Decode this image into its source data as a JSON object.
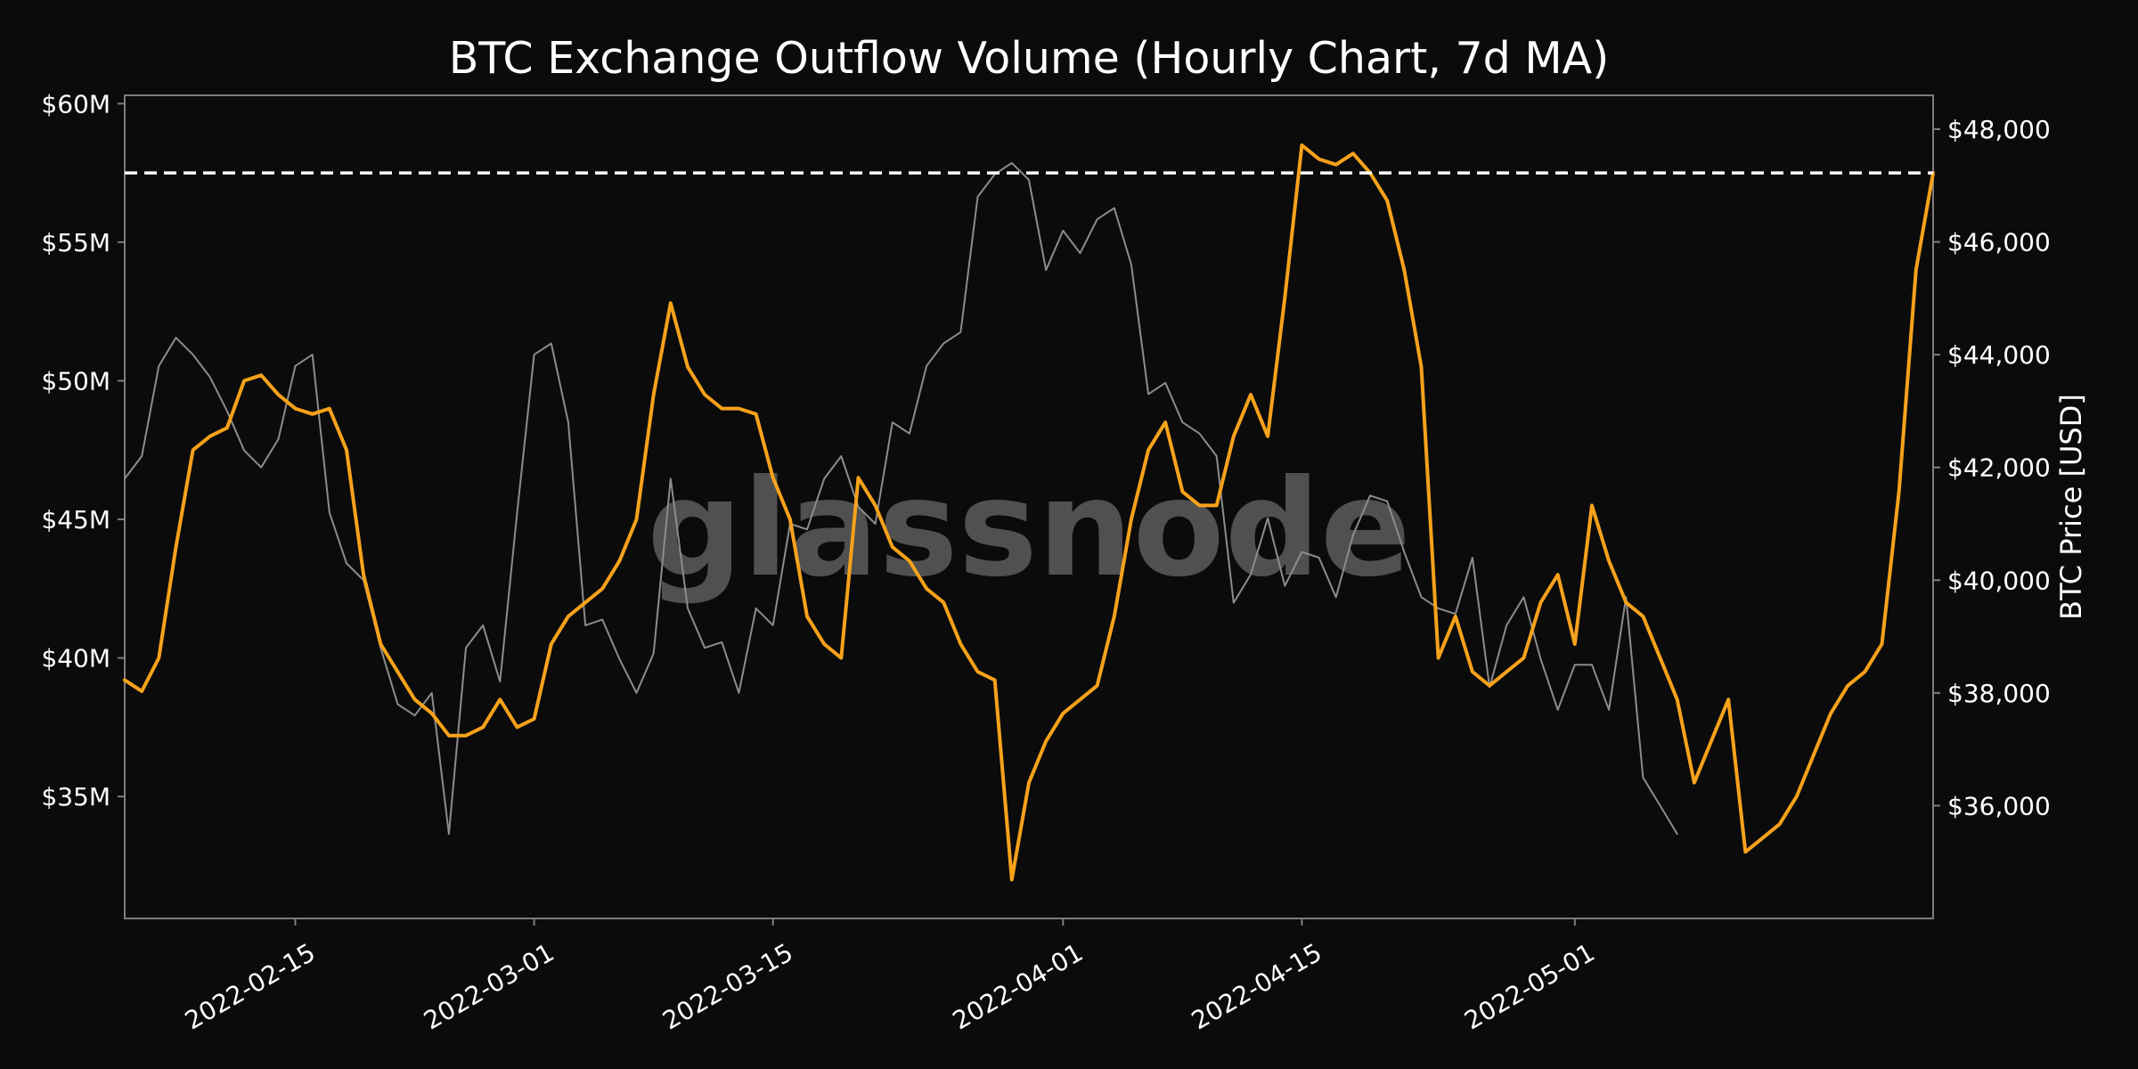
{
  "chart_data": {
    "type": "line",
    "title": "BTC Exchange Outflow Volume (Hourly Chart, 7d MA)",
    "watermark": "glassnode",
    "background_color": "#0b0b0b",
    "xlim": [
      "2022-02-05",
      "2022-05-22"
    ],
    "x_ticks": [
      "2022-02-15",
      "2022-03-01",
      "2022-03-15",
      "2022-04-01",
      "2022-04-15",
      "2022-05-01"
    ],
    "y_left": {
      "label": "",
      "lim": [
        30600000,
        60300000
      ],
      "ticks": [
        35000000,
        40000000,
        45000000,
        50000000,
        55000000,
        60000000
      ],
      "tick_labels": [
        "$35M",
        "$40M",
        "$45M",
        "$50M",
        "$55M",
        "$60M"
      ]
    },
    "y_right": {
      "label": "BTC Price [USD]",
      "lim": [
        34000,
        48600
      ],
      "ticks": [
        36000,
        38000,
        40000,
        42000,
        44000,
        46000,
        48000
      ],
      "tick_labels": [
        "$36,000",
        "$38,000",
        "$40,000",
        "$42,000",
        "$44,000",
        "$46,000",
        "$48,000"
      ]
    },
    "reference_line": {
      "axis": "left",
      "value": 57500000,
      "style": "dashed",
      "color": "#ffffff"
    },
    "series": [
      {
        "axis": "left",
        "color": "#f7a21b",
        "points": [
          [
            "2022-02-05",
            39.2
          ],
          [
            "2022-02-06",
            38.8
          ],
          [
            "2022-02-07",
            40.0
          ],
          [
            "2022-02-08",
            44.0
          ],
          [
            "2022-02-09",
            47.5
          ],
          [
            "2022-02-10",
            48.0
          ],
          [
            "2022-02-11",
            48.3
          ],
          [
            "2022-02-12",
            50.0
          ],
          [
            "2022-02-13",
            50.2
          ],
          [
            "2022-02-14",
            49.5
          ],
          [
            "2022-02-15",
            49.0
          ],
          [
            "2022-02-16",
            48.8
          ],
          [
            "2022-02-17",
            49.0
          ],
          [
            "2022-02-18",
            47.5
          ],
          [
            "2022-02-19",
            43.0
          ],
          [
            "2022-02-20",
            40.5
          ],
          [
            "2022-02-21",
            39.5
          ],
          [
            "2022-02-22",
            38.5
          ],
          [
            "2022-02-23",
            38.0
          ],
          [
            "2022-02-24",
            37.2
          ],
          [
            "2022-02-25",
            37.2
          ],
          [
            "2022-02-26",
            37.5
          ],
          [
            "2022-02-27",
            38.5
          ],
          [
            "2022-02-28",
            37.5
          ],
          [
            "2022-03-01",
            37.8
          ],
          [
            "2022-03-02",
            40.5
          ],
          [
            "2022-03-03",
            41.5
          ],
          [
            "2022-03-04",
            42.0
          ],
          [
            "2022-03-05",
            42.5
          ],
          [
            "2022-03-06",
            43.5
          ],
          [
            "2022-03-07",
            45.0
          ],
          [
            "2022-03-08",
            49.5
          ],
          [
            "2022-03-09",
            52.8
          ],
          [
            "2022-03-10",
            50.5
          ],
          [
            "2022-03-11",
            49.5
          ],
          [
            "2022-03-12",
            49.0
          ],
          [
            "2022-03-13",
            49.0
          ],
          [
            "2022-03-14",
            48.8
          ],
          [
            "2022-03-15",
            46.5
          ],
          [
            "2022-03-16",
            45.0
          ],
          [
            "2022-03-17",
            41.5
          ],
          [
            "2022-03-18",
            40.5
          ],
          [
            "2022-03-19",
            40.0
          ],
          [
            "2022-03-20",
            46.5
          ],
          [
            "2022-03-21",
            45.5
          ],
          [
            "2022-03-22",
            44.0
          ],
          [
            "2022-03-23",
            43.5
          ],
          [
            "2022-03-24",
            42.5
          ],
          [
            "2022-03-25",
            42.0
          ],
          [
            "2022-03-26",
            40.5
          ],
          [
            "2022-03-27",
            39.5
          ],
          [
            "2022-03-28",
            39.2
          ],
          [
            "2022-03-29",
            32.0
          ],
          [
            "2022-03-30",
            35.5
          ],
          [
            "2022-03-31",
            37.0
          ],
          [
            "2022-04-01",
            38.0
          ],
          [
            "2022-04-02",
            38.5
          ],
          [
            "2022-04-03",
            39.0
          ],
          [
            "2022-04-04",
            41.5
          ],
          [
            "2022-04-05",
            45.0
          ],
          [
            "2022-04-06",
            47.5
          ],
          [
            "2022-04-07",
            48.5
          ],
          [
            "2022-04-08",
            46.0
          ],
          [
            "2022-04-09",
            45.5
          ],
          [
            "2022-04-10",
            45.5
          ],
          [
            "2022-04-11",
            48.0
          ],
          [
            "2022-04-12",
            49.5
          ],
          [
            "2022-04-13",
            48.0
          ],
          [
            "2022-04-14",
            53.0
          ],
          [
            "2022-04-15",
            58.5
          ],
          [
            "2022-04-16",
            58.0
          ],
          [
            "2022-04-17",
            57.8
          ],
          [
            "2022-04-18",
            58.2
          ],
          [
            "2022-04-19",
            57.5
          ],
          [
            "2022-04-20",
            56.5
          ],
          [
            "2022-04-21",
            54.0
          ],
          [
            "2022-04-22",
            50.5
          ],
          [
            "2022-04-23",
            40.0
          ],
          [
            "2022-04-24",
            41.5
          ],
          [
            "2022-04-25",
            39.5
          ],
          [
            "2022-04-26",
            39.0
          ],
          [
            "2022-04-27",
            39.5
          ],
          [
            "2022-04-28",
            40.0
          ],
          [
            "2022-04-29",
            42.0
          ],
          [
            "2022-04-30",
            43.0
          ],
          [
            "2022-05-01",
            40.5
          ],
          [
            "2022-05-02",
            45.5
          ],
          [
            "2022-05-03",
            43.5
          ],
          [
            "2022-05-04",
            42.0
          ],
          [
            "2022-05-05",
            41.5
          ],
          [
            "2022-05-06",
            40.0
          ],
          [
            "2022-05-07",
            38.5
          ],
          [
            "2022-05-08",
            35.5
          ],
          [
            "2022-05-09",
            37.0
          ],
          [
            "2022-05-10",
            38.5
          ],
          [
            "2022-05-11",
            33.0
          ],
          [
            "2022-05-12",
            33.5
          ],
          [
            "2022-05-13",
            34.0
          ],
          [
            "2022-05-14",
            35.0
          ],
          [
            "2022-05-15",
            36.5
          ],
          [
            "2022-05-16",
            38.0
          ],
          [
            "2022-05-17",
            39.0
          ],
          [
            "2022-05-18",
            39.5
          ],
          [
            "2022-05-19",
            40.5
          ],
          [
            "2022-05-20",
            46.0
          ],
          [
            "2022-05-21",
            54.0
          ],
          [
            "2022-05-22",
            57.5
          ]
        ]
      },
      {
        "axis": "right",
        "color": "#8c8c8c",
        "points": [
          [
            "2022-02-05",
            41.8
          ],
          [
            "2022-02-06",
            42.2
          ],
          [
            "2022-02-07",
            43.8
          ],
          [
            "2022-02-08",
            44.3
          ],
          [
            "2022-02-09",
            44.0
          ],
          [
            "2022-02-10",
            43.6
          ],
          [
            "2022-02-11",
            43.0
          ],
          [
            "2022-02-12",
            42.3
          ],
          [
            "2022-02-13",
            42.0
          ],
          [
            "2022-02-14",
            42.5
          ],
          [
            "2022-02-15",
            43.8
          ],
          [
            "2022-02-16",
            44.0
          ],
          [
            "2022-02-17",
            41.2
          ],
          [
            "2022-02-18",
            40.3
          ],
          [
            "2022-02-19",
            40.0
          ],
          [
            "2022-02-20",
            38.8
          ],
          [
            "2022-02-21",
            37.8
          ],
          [
            "2022-02-22",
            37.6
          ],
          [
            "2022-02-23",
            38.0
          ],
          [
            "2022-02-24",
            35.5
          ],
          [
            "2022-02-25",
            38.8
          ],
          [
            "2022-02-26",
            39.2
          ],
          [
            "2022-02-27",
            38.2
          ],
          [
            "2022-02-28",
            41.2
          ],
          [
            "2022-03-01",
            44.0
          ],
          [
            "2022-03-02",
            44.2
          ],
          [
            "2022-03-03",
            42.8
          ],
          [
            "2022-03-04",
            39.2
          ],
          [
            "2022-03-05",
            39.3
          ],
          [
            "2022-03-06",
            38.6
          ],
          [
            "2022-03-07",
            38.0
          ],
          [
            "2022-03-08",
            38.7
          ],
          [
            "2022-03-09",
            41.8
          ],
          [
            "2022-03-10",
            39.5
          ],
          [
            "2022-03-11",
            38.8
          ],
          [
            "2022-03-12",
            38.9
          ],
          [
            "2022-03-13",
            38.0
          ],
          [
            "2022-03-14",
            39.5
          ],
          [
            "2022-03-15",
            39.2
          ],
          [
            "2022-03-16",
            41.0
          ],
          [
            "2022-03-17",
            40.9
          ],
          [
            "2022-03-18",
            41.8
          ],
          [
            "2022-03-19",
            42.2
          ],
          [
            "2022-03-20",
            41.3
          ],
          [
            "2022-03-21",
            41.0
          ],
          [
            "2022-03-22",
            42.8
          ],
          [
            "2022-03-23",
            42.6
          ],
          [
            "2022-03-24",
            43.8
          ],
          [
            "2022-03-25",
            44.2
          ],
          [
            "2022-03-26",
            44.4
          ],
          [
            "2022-03-27",
            46.8
          ],
          [
            "2022-03-28",
            47.2
          ],
          [
            "2022-03-29",
            47.4
          ],
          [
            "2022-03-30",
            47.1
          ],
          [
            "2022-03-31",
            45.5
          ],
          [
            "2022-04-01",
            46.2
          ],
          [
            "2022-04-02",
            45.8
          ],
          [
            "2022-04-03",
            46.4
          ],
          [
            "2022-04-04",
            46.6
          ],
          [
            "2022-04-05",
            45.6
          ],
          [
            "2022-04-06",
            43.3
          ],
          [
            "2022-04-07",
            43.5
          ],
          [
            "2022-04-08",
            42.8
          ],
          [
            "2022-04-09",
            42.6
          ],
          [
            "2022-04-10",
            42.2
          ],
          [
            "2022-04-11",
            39.6
          ],
          [
            "2022-04-12",
            40.1
          ],
          [
            "2022-04-13",
            41.1
          ],
          [
            "2022-04-14",
            39.9
          ],
          [
            "2022-04-15",
            40.5
          ],
          [
            "2022-04-16",
            40.4
          ],
          [
            "2022-04-17",
            39.7
          ],
          [
            "2022-04-18",
            40.8
          ],
          [
            "2022-04-19",
            41.5
          ],
          [
            "2022-04-20",
            41.4
          ],
          [
            "2022-04-21",
            40.5
          ],
          [
            "2022-04-22",
            39.7
          ],
          [
            "2022-04-23",
            39.5
          ],
          [
            "2022-04-24",
            39.4
          ],
          [
            "2022-04-25",
            40.4
          ],
          [
            "2022-04-26",
            38.1
          ],
          [
            "2022-04-27",
            39.2
          ],
          [
            "2022-04-28",
            39.7
          ],
          [
            "2022-04-29",
            38.6
          ],
          [
            "2022-04-30",
            37.7
          ],
          [
            "2022-05-01",
            38.5
          ],
          [
            "2022-05-02",
            38.5
          ],
          [
            "2022-05-03",
            37.7
          ],
          [
            "2022-05-04",
            39.7
          ],
          [
            "2022-05-05",
            36.5
          ],
          [
            "2022-05-06",
            36.0
          ],
          [
            "2022-05-07",
            35.5
          ]
        ]
      }
    ]
  }
}
